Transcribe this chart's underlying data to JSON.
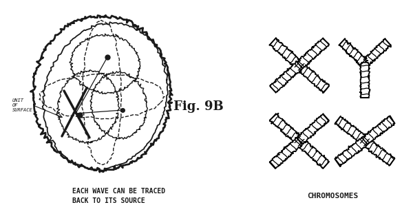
{
  "bg_color": "#ffffff",
  "ink_color": "#1a1a1a",
  "fig_label": "Fig. 9B",
  "caption_left_line1": "EACH WAVE CAN BE TRACED",
  "caption_left_line2": "BACK TO ITS SOURCE",
  "label_unit": "UNIT\nOF\nSURFACE",
  "caption_bottom": "CHROMOSOMES",
  "fig_width": 6.0,
  "fig_height": 3.14,
  "dpi": 100
}
